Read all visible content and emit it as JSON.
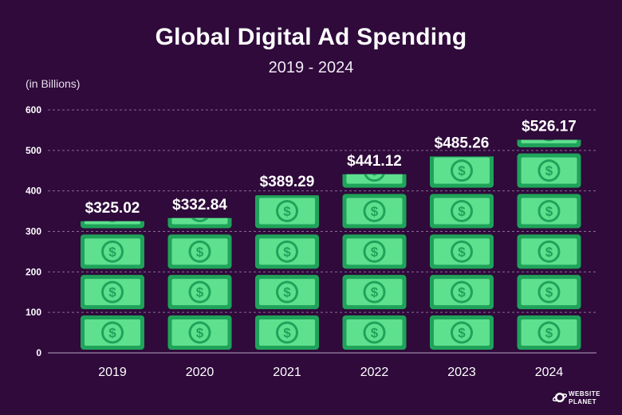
{
  "chart_data": {
    "type": "bar",
    "title": "Global Digital Ad Spending",
    "subtitle": "2019 - 2024",
    "unit_label": "(in Billions)",
    "categories": [
      "2019",
      "2020",
      "2021",
      "2022",
      "2023",
      "2024"
    ],
    "values": [
      325.02,
      332.84,
      389.29,
      441.12,
      485.26,
      526.17
    ],
    "value_labels": [
      "$325.02",
      "$332.84",
      "$389.29",
      "$441.12",
      "$485.26",
      "$526.17"
    ],
    "y_ticks": [
      "0",
      "100",
      "200",
      "300",
      "400",
      "500",
      "600"
    ],
    "ylim": [
      0,
      600
    ],
    "grid": true,
    "colors": {
      "background": "#2f0a3b",
      "bill_dark": "#1fa35a",
      "bill_light": "#5fe08e",
      "grid": "#8a6a96"
    }
  },
  "branding": {
    "line1": "WEBSITE",
    "line2": "PLANET"
  }
}
